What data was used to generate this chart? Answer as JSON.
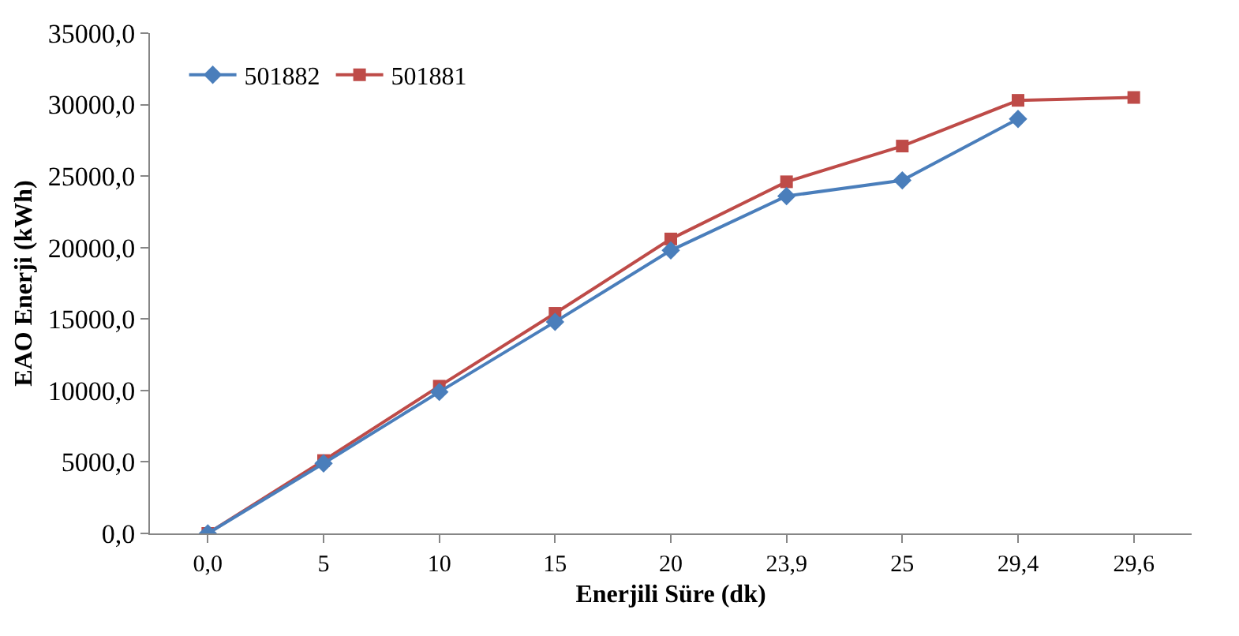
{
  "chart_data": {
    "type": "line",
    "xlabel": "Enerjili Süre (dk)",
    "ylabel": "EAO Enerji (kWh)",
    "categories": [
      "0,0",
      "5",
      "10",
      "15",
      "20",
      "23,9",
      "25",
      "29,4",
      "29,6"
    ],
    "series": [
      {
        "name": "501882",
        "color": "#4a7ebb",
        "marker": "diamond",
        "values": [
          0,
          4900,
          9900,
          14800,
          19800,
          23600,
          24700,
          29000,
          null
        ]
      },
      {
        "name": "501881",
        "color": "#be4b48",
        "marker": "square",
        "values": [
          0,
          5100,
          10300,
          15400,
          20600,
          24600,
          27100,
          30300,
          30500
        ]
      }
    ],
    "ylim": [
      0,
      35000
    ],
    "yticks": [
      {
        "value": 0,
        "label": "0,0"
      },
      {
        "value": 5000,
        "label": "5000,0"
      },
      {
        "value": 10000,
        "label": "10000,0"
      },
      {
        "value": 15000,
        "label": "15000,0"
      },
      {
        "value": 20000,
        "label": "20000,0"
      },
      {
        "value": 25000,
        "label": "25000,0"
      },
      {
        "value": 30000,
        "label": "30000,0"
      },
      {
        "value": 35000,
        "label": "35000,0"
      }
    ],
    "legend": "top left",
    "line_style": "solid"
  }
}
